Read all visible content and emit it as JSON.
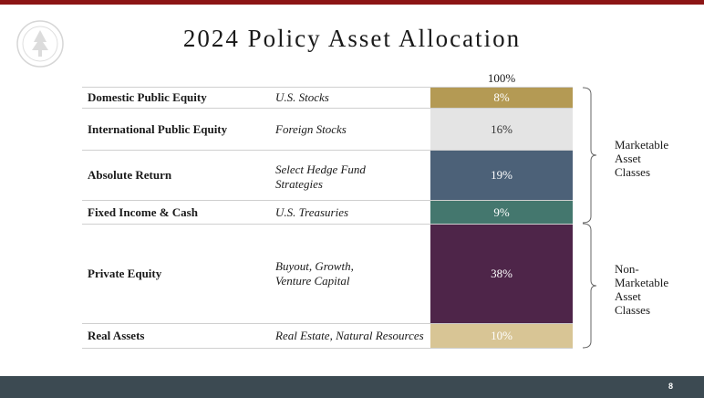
{
  "title": "2024 Policy Asset Allocation",
  "total_header": "100%",
  "rows": [
    {
      "asset_class": "Domestic Public Equity",
      "sub_class_lines": [
        "U.S. Stocks"
      ],
      "percent": "8%",
      "color": "#b49a54",
      "text_color": "dark"
    },
    {
      "asset_class": "International Public Equity",
      "sub_class_lines": [
        "Foreign Stocks"
      ],
      "percent": "16%",
      "color": "#e4e4e4",
      "text_color": "light"
    },
    {
      "asset_class": "Absolute Return",
      "sub_class_lines": [
        "Select Hedge Fund",
        "Strategies"
      ],
      "percent": "19%",
      "color": "#4c6178",
      "text_color": "dark"
    },
    {
      "asset_class": "Fixed Income & Cash",
      "sub_class_lines": [
        "U.S. Treasuries"
      ],
      "percent": "9%",
      "color": "#44776e",
      "text_color": "dark"
    },
    {
      "asset_class": "Private Equity",
      "sub_class_lines": [
        "Buyout, Growth,",
        "Venture Capital"
      ],
      "percent": "38%",
      "color": "#4e2549",
      "text_color": "dark"
    },
    {
      "asset_class": "Real Assets",
      "sub_class_lines": [
        "Real Estate, Natural Resources"
      ],
      "percent": "10%",
      "color": "#d8c595",
      "text_color": "dark"
    }
  ],
  "groups": [
    {
      "label_lines": [
        "Marketable",
        "Asset",
        "Classes"
      ]
    },
    {
      "label_lines": [
        "Non-",
        "Marketable",
        "Asset",
        "Classes"
      ]
    }
  ],
  "page_number": "8",
  "colors": {
    "top_bar": "#8c1515",
    "footer": "#3c4a52"
  },
  "icons": {
    "seal": "university-seal-icon"
  }
}
